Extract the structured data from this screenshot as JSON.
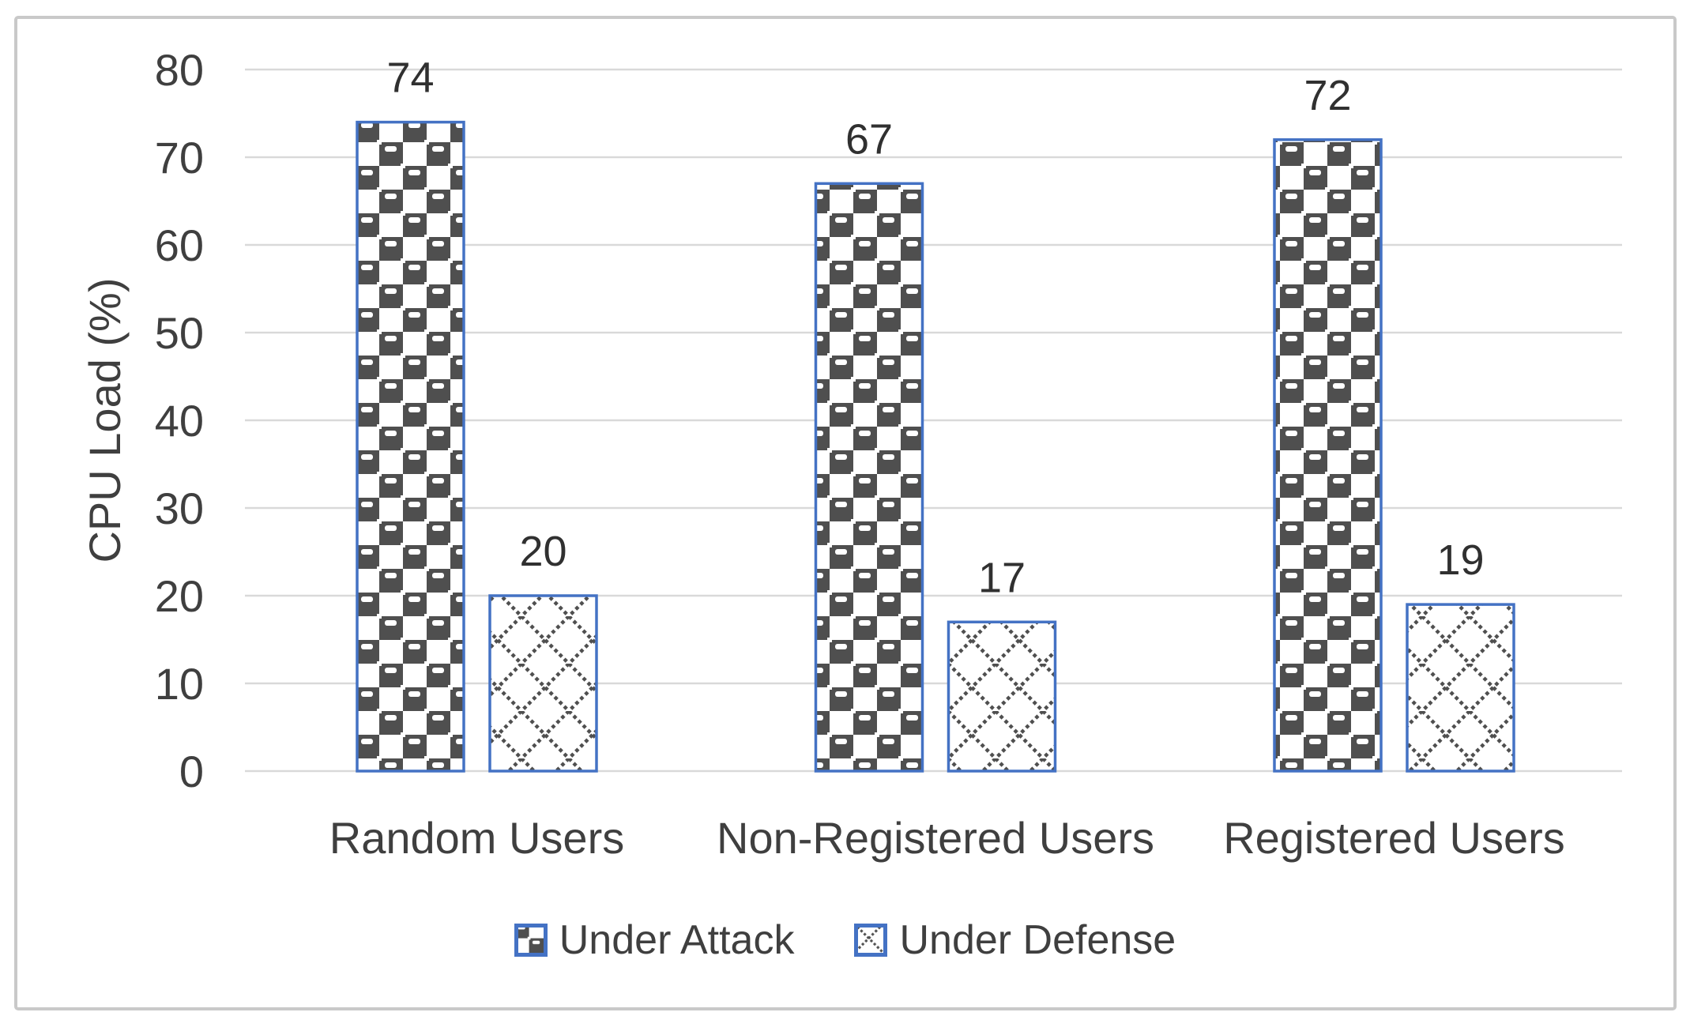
{
  "chart_data": {
    "type": "bar",
    "title": "",
    "categories": [
      "Random Users",
      "Non-Registered Users",
      "Registered Users"
    ],
    "series": [
      {
        "name": "Under Attack",
        "values": [
          74,
          67,
          72
        ],
        "pattern": "sphere-checker-pattern",
        "data_labels": [
          "74",
          "67",
          "72"
        ]
      },
      {
        "name": "Under Defense",
        "values": [
          20,
          17,
          19
        ],
        "pattern": "diamond-lattice-pattern",
        "data_labels": [
          "20",
          "17",
          "19"
        ]
      }
    ],
    "xlabel": "",
    "ylabel": "CPU Load (%)",
    "ylim": [
      0,
      80
    ],
    "ytick_step": 10,
    "yticks": [
      "0",
      "10",
      "20",
      "30",
      "40",
      "50",
      "60",
      "70",
      "80"
    ],
    "grid": "horizontal",
    "legend_position": "bottom",
    "colors": {
      "bar_border": "#4472c4",
      "pattern_foreground": "#4f4f4f",
      "pattern_background": "#ffffff",
      "gridline": "#d9d9d9",
      "text": "#3f3f3f",
      "figure_border": "#c9c9c9",
      "background": "#ffffff"
    }
  }
}
